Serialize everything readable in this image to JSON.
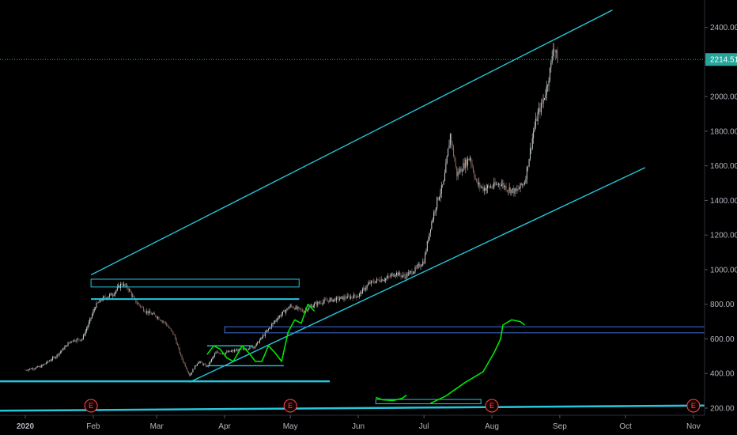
{
  "chart_data": {
    "type": "candlestick",
    "y_axis": {
      "ticks": [
        200,
        400,
        600,
        800,
        1000,
        1200,
        1400,
        1600,
        1800,
        2000,
        2200,
        2400
      ]
    },
    "x_axis": {
      "labels": [
        "2020",
        "Feb",
        "Mar",
        "Apr",
        "May",
        "Jun",
        "Jul",
        "Aug",
        "Sep",
        "Oct",
        "Nov"
      ]
    },
    "last_price": "2214.51",
    "event_markers": [
      "E",
      "E",
      "E",
      "E"
    ],
    "close_path": [
      [
        "2020-01-01",
        420
      ],
      [
        "2020-01-08",
        440
      ],
      [
        "2020-01-15",
        500
      ],
      [
        "2020-01-22",
        590
      ],
      [
        "2020-01-27",
        600
      ],
      [
        "2020-01-30",
        690
      ],
      [
        "2020-02-02",
        790
      ],
      [
        "2020-02-05",
        830
      ],
      [
        "2020-02-10",
        860
      ],
      [
        "2020-02-14",
        920
      ],
      [
        "2020-02-17",
        890
      ],
      [
        "2020-02-20",
        820
      ],
      [
        "2020-02-25",
        760
      ],
      [
        "2020-03-01",
        730
      ],
      [
        "2020-03-05",
        690
      ],
      [
        "2020-03-09",
        620
      ],
      [
        "2020-03-12",
        500
      ],
      [
        "2020-03-16",
        390
      ],
      [
        "2020-03-20",
        470
      ],
      [
        "2020-03-24",
        440
      ],
      [
        "2020-03-28",
        520
      ],
      [
        "2020-04-01",
        520
      ],
      [
        "2020-04-05",
        530
      ],
      [
        "2020-04-10",
        540
      ],
      [
        "2020-04-15",
        560
      ],
      [
        "2020-04-20",
        640
      ],
      [
        "2020-04-25",
        720
      ],
      [
        "2020-05-01",
        790
      ],
      [
        "2020-05-07",
        760
      ],
      [
        "2020-05-12",
        800
      ],
      [
        "2020-05-17",
        820
      ],
      [
        "2020-05-22",
        830
      ],
      [
        "2020-05-27",
        840
      ],
      [
        "2020-06-01",
        850
      ],
      [
        "2020-06-06",
        920
      ],
      [
        "2020-06-10",
        940
      ],
      [
        "2020-06-14",
        950
      ],
      [
        "2020-06-18",
        980
      ],
      [
        "2020-06-22",
        960
      ],
      [
        "2020-06-27",
        1000
      ],
      [
        "2020-07-01",
        1050
      ],
      [
        "2020-07-04",
        1250
      ],
      [
        "2020-07-07",
        1400
      ],
      [
        "2020-07-10",
        1500
      ],
      [
        "2020-07-13",
        1780
      ],
      [
        "2020-07-16",
        1550
      ],
      [
        "2020-07-19",
        1600
      ],
      [
        "2020-07-22",
        1650
      ],
      [
        "2020-07-25",
        1500
      ],
      [
        "2020-07-28",
        1470
      ],
      [
        "2020-08-01",
        1480
      ],
      [
        "2020-08-05",
        1500
      ],
      [
        "2020-08-08",
        1470
      ],
      [
        "2020-08-12",
        1450
      ],
      [
        "2020-08-14",
        1480
      ],
      [
        "2020-08-16",
        1510
      ],
      [
        "2020-08-18",
        1650
      ],
      [
        "2020-08-20",
        1800
      ],
      [
        "2020-08-22",
        1900
      ],
      [
        "2020-08-24",
        1960
      ],
      [
        "2020-08-26",
        2050
      ],
      [
        "2020-08-27",
        2120
      ],
      [
        "2020-08-28",
        2180
      ],
      [
        "2020-08-29",
        2300
      ],
      [
        "2020-08-31",
        2214.51
      ]
    ],
    "trendlines": [
      {
        "color": "#26c6da",
        "from": [
          "2020-01-31",
          970
        ],
        "to": [
          "2020-09-25",
          2500
        ]
      },
      {
        "color": "#26c6da",
        "from": [
          "2020-03-16",
          350
        ],
        "to": [
          "2020-10-10",
          1590
        ]
      },
      {
        "color": "#26c6da",
        "from": [
          "2020-01-01",
          355
        ],
        "to": [
          "2020-05-19",
          355
        ]
      },
      {
        "color": "#26c6da",
        "from": [
          "2020-01-01",
          185
        ],
        "to": [
          "2020-11-30",
          215
        ]
      },
      {
        "color": "#26c6da",
        "from": [
          "2020-01-31",
          830
        ],
        "to": [
          "2020-05-05",
          830
        ]
      },
      {
        "color": "#26c6da",
        "from": [
          "2020-03-24",
          445
        ],
        "to": [
          "2020-04-28",
          445
        ]
      },
      {
        "color": "#26c6da",
        "from": [
          "2020-03-24",
          560
        ],
        "to": [
          "2020-04-14",
          560
        ]
      }
    ],
    "rectangles": [
      {
        "color": "#26c6da",
        "from": [
          "2020-01-31",
          900
        ],
        "to": [
          "2020-05-05",
          945
        ]
      },
      {
        "color": "#3f6fd8",
        "from": [
          "2020-04-01",
          635
        ],
        "to": [
          "2020-11-30",
          670
        ]
      },
      {
        "color": "#26c6da",
        "from": [
          "2020-06-09",
          225
        ],
        "to": [
          "2020-07-27",
          250
        ]
      }
    ]
  }
}
